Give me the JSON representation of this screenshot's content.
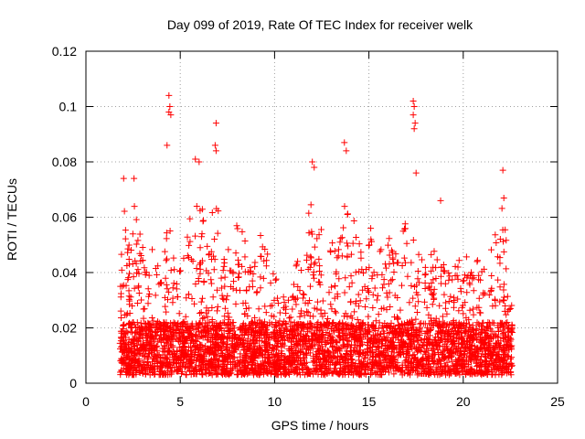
{
  "chart_data": {
    "type": "scatter",
    "title": "Day 099 of 2019, Rate Of TEC Index for receiver welk",
    "xlabel": "GPS time / hours",
    "ylabel": "ROTI / TECUs",
    "xlim": [
      0,
      25
    ],
    "ylim": [
      0,
      0.12
    ],
    "x_ticks": [
      0,
      5,
      10,
      15,
      20,
      25
    ],
    "x_tick_labels": [
      "0",
      "5",
      "10",
      "15",
      "20",
      "25"
    ],
    "y_ticks": [
      0,
      0.02,
      0.04,
      0.06,
      0.08,
      0.1,
      0.12
    ],
    "y_tick_labels": [
      "0",
      "0.02",
      "0.04",
      "0.06",
      "0.08",
      "0.1",
      "0.12"
    ],
    "grid": true,
    "marker": "+",
    "color": "#ff0000",
    "series": [
      {
        "name": "ROTI",
        "x_range": [
          1.8,
          22.6
        ],
        "baseline_range": [
          0.003,
          0.022
        ],
        "notable_points": [
          {
            "x": 4.4,
            "y": 0.104
          },
          {
            "x": 4.45,
            "y": 0.1
          },
          {
            "x": 4.4,
            "y": 0.098
          },
          {
            "x": 4.5,
            "y": 0.097
          },
          {
            "x": 4.3,
            "y": 0.086
          },
          {
            "x": 6.9,
            "y": 0.094
          },
          {
            "x": 6.85,
            "y": 0.086
          },
          {
            "x": 6.9,
            "y": 0.084
          },
          {
            "x": 5.8,
            "y": 0.081
          },
          {
            "x": 6.0,
            "y": 0.08
          },
          {
            "x": 17.35,
            "y": 0.102
          },
          {
            "x": 17.4,
            "y": 0.1
          },
          {
            "x": 17.35,
            "y": 0.097
          },
          {
            "x": 17.45,
            "y": 0.094
          },
          {
            "x": 17.4,
            "y": 0.092
          },
          {
            "x": 13.7,
            "y": 0.087
          },
          {
            "x": 13.8,
            "y": 0.084
          },
          {
            "x": 12.0,
            "y": 0.08
          },
          {
            "x": 12.1,
            "y": 0.078
          },
          {
            "x": 22.1,
            "y": 0.077
          },
          {
            "x": 17.5,
            "y": 0.076
          },
          {
            "x": 2.0,
            "y": 0.074
          },
          {
            "x": 2.55,
            "y": 0.074
          },
          {
            "x": 18.8,
            "y": 0.066
          }
        ],
        "envelope": [
          [
            1.8,
            0.03
          ],
          [
            2.0,
            0.072
          ],
          [
            2.3,
            0.05
          ],
          [
            2.6,
            0.07
          ],
          [
            3.0,
            0.05
          ],
          [
            3.5,
            0.052
          ],
          [
            4.0,
            0.045
          ],
          [
            4.4,
            0.068
          ],
          [
            4.8,
            0.04
          ],
          [
            5.2,
            0.05
          ],
          [
            5.6,
            0.062
          ],
          [
            6.0,
            0.068
          ],
          [
            6.4,
            0.06
          ],
          [
            6.9,
            0.07
          ],
          [
            7.3,
            0.045
          ],
          [
            7.8,
            0.055
          ],
          [
            8.3,
            0.06
          ],
          [
            8.8,
            0.04
          ],
          [
            9.3,
            0.06
          ],
          [
            9.7,
            0.05
          ],
          [
            10.2,
            0.035
          ],
          [
            10.7,
            0.03
          ],
          [
            11.2,
            0.045
          ],
          [
            11.6,
            0.052
          ],
          [
            12.0,
            0.07
          ],
          [
            12.4,
            0.058
          ],
          [
            12.8,
            0.055
          ],
          [
            13.2,
            0.05
          ],
          [
            13.7,
            0.075
          ],
          [
            14.1,
            0.06
          ],
          [
            14.6,
            0.055
          ],
          [
            15.0,
            0.062
          ],
          [
            15.4,
            0.045
          ],
          [
            15.9,
            0.055
          ],
          [
            16.4,
            0.05
          ],
          [
            16.8,
            0.06
          ],
          [
            17.3,
            0.055
          ],
          [
            17.8,
            0.048
          ],
          [
            18.3,
            0.05
          ],
          [
            18.8,
            0.045
          ],
          [
            19.3,
            0.04
          ],
          [
            19.8,
            0.045
          ],
          [
            20.3,
            0.05
          ],
          [
            20.8,
            0.045
          ],
          [
            21.3,
            0.042
          ],
          [
            21.8,
            0.06
          ],
          [
            22.2,
            0.068
          ],
          [
            22.6,
            0.025
          ]
        ]
      }
    ]
  }
}
